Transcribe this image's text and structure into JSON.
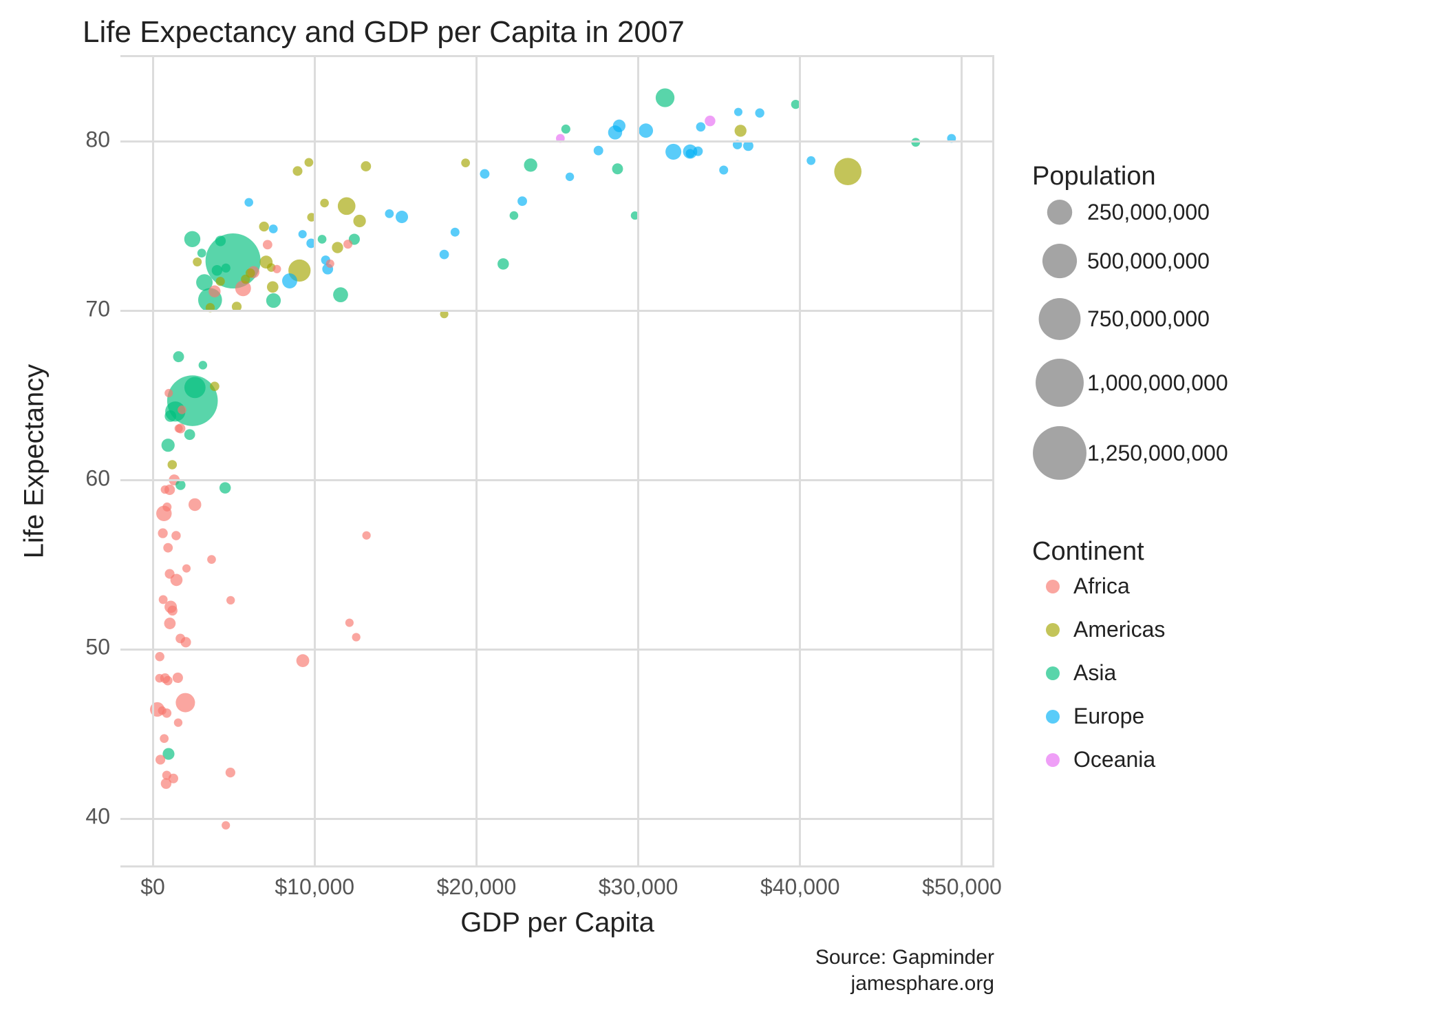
{
  "chart": {
    "type": "scatter-bubble",
    "title": "Life Expectancy and GDP per Capita in 2007",
    "xlabel": "GDP per Capita",
    "ylabel": "Life Expectancy",
    "caption_line1": "Source: Gapminder",
    "caption_line2": "jamesphare.org",
    "background_color": "#ffffff",
    "grid_color": "#dcdcdc",
    "title_fontsize": 44,
    "axis_label_fontsize": 40,
    "tick_fontsize": 32,
    "xlim": [
      -2000,
      52000
    ],
    "ylim": [
      37,
      85
    ],
    "xticks": [
      0,
      10000,
      20000,
      30000,
      40000,
      50000
    ],
    "xtick_labels": [
      "$0",
      "$10,000",
      "$20,000",
      "$30,000",
      "$40,000",
      "$50,000"
    ],
    "yticks": [
      40,
      50,
      60,
      70,
      80
    ],
    "ytick_labels": [
      "40",
      "50",
      "60",
      "70",
      "80"
    ],
    "point_fill_opacity": 0.65,
    "point_stroke": "none",
    "continents": {
      "Africa": {
        "color": "#f8766d"
      },
      "Americas": {
        "color": "#a3a500"
      },
      "Asia": {
        "color": "#00bf7d"
      },
      "Europe": {
        "color": "#00b0f6"
      },
      "Oceania": {
        "color": "#e76bf3"
      }
    },
    "size_scale": {
      "min_pop": 200000,
      "max_pop": 1318683096,
      "min_r": 6,
      "max_r": 40
    },
    "legend_population": {
      "title": "Population",
      "items": [
        {
          "label": "250,000,000",
          "pop": 250000000
        },
        {
          "label": "500,000,000",
          "pop": 500000000
        },
        {
          "label": "750,000,000",
          "pop": 750000000
        },
        {
          "label": "1,000,000,000",
          "pop": 1000000000
        },
        {
          "label": "1,250,000,000",
          "pop": 1250000000
        }
      ]
    },
    "legend_continent": {
      "title": "Continent",
      "items": [
        "Africa",
        "Americas",
        "Asia",
        "Europe",
        "Oceania"
      ]
    },
    "data": [
      {
        "continent": "Asia",
        "gdp": 974.58,
        "life": 43.83,
        "pop": 31889923
      },
      {
        "continent": "Europe",
        "gdp": 5937.03,
        "life": 76.42,
        "pop": 3600523
      },
      {
        "continent": "Africa",
        "gdp": 6223.37,
        "life": 72.3,
        "pop": 33333216
      },
      {
        "continent": "Africa",
        "gdp": 4797.23,
        "life": 42.73,
        "pop": 12420476
      },
      {
        "continent": "Americas",
        "gdp": 12779.38,
        "life": 75.32,
        "pop": 40301927
      },
      {
        "continent": "Oceania",
        "gdp": 34435.37,
        "life": 81.23,
        "pop": 20434176
      },
      {
        "continent": "Europe",
        "gdp": 36126.49,
        "life": 79.83,
        "pop": 8199783
      },
      {
        "continent": "Asia",
        "gdp": 29796.05,
        "life": 75.64,
        "pop": 708573
      },
      {
        "continent": "Asia",
        "gdp": 1391.25,
        "life": 64.06,
        "pop": 150448339
      },
      {
        "continent": "Europe",
        "gdp": 33692.61,
        "life": 79.44,
        "pop": 10392226
      },
      {
        "continent": "Africa",
        "gdp": 1441.28,
        "life": 56.73,
        "pop": 8078314
      },
      {
        "continent": "Americas",
        "gdp": 3822.14,
        "life": 65.55,
        "pop": 9119152
      },
      {
        "continent": "Europe",
        "gdp": 7446.3,
        "life": 74.85,
        "pop": 4552198
      },
      {
        "continent": "Africa",
        "gdp": 12569.85,
        "life": 50.73,
        "pop": 1639131
      },
      {
        "continent": "Americas",
        "gdp": 9065.8,
        "life": 72.39,
        "pop": 190010647
      },
      {
        "continent": "Europe",
        "gdp": 10680.79,
        "life": 73.01,
        "pop": 7322858
      },
      {
        "continent": "Africa",
        "gdp": 1217.03,
        "life": 52.3,
        "pop": 14326203
      },
      {
        "continent": "Africa",
        "gdp": 430.07,
        "life": 49.58,
        "pop": 8390505
      },
      {
        "continent": "Asia",
        "gdp": 1713.78,
        "life": 59.72,
        "pop": 14131858
      },
      {
        "continent": "Africa",
        "gdp": 2042.1,
        "life": 50.43,
        "pop": 17696293
      },
      {
        "continent": "Americas",
        "gdp": 36319.24,
        "life": 80.65,
        "pop": 33390141
      },
      {
        "continent": "Africa",
        "gdp": 706.02,
        "life": 44.74,
        "pop": 4369038
      },
      {
        "continent": "Africa",
        "gdp": 1704.06,
        "life": 50.65,
        "pop": 10238807
      },
      {
        "continent": "Americas",
        "gdp": 13171.64,
        "life": 78.55,
        "pop": 16284741
      },
      {
        "continent": "Asia",
        "gdp": 4959.11,
        "life": 72.96,
        "pop": 1318683096
      },
      {
        "continent": "Americas",
        "gdp": 7006.58,
        "life": 72.89,
        "pop": 44227550
      },
      {
        "continent": "Africa",
        "gdp": 986.15,
        "life": 65.15,
        "pop": 710960
      },
      {
        "continent": "Africa",
        "gdp": 277.55,
        "life": 46.46,
        "pop": 64606759
      },
      {
        "continent": "Africa",
        "gdp": 3632.56,
        "life": 55.32,
        "pop": 3800610
      },
      {
        "continent": "Americas",
        "gdp": 9645.06,
        "life": 78.78,
        "pop": 4133884
      },
      {
        "continent": "Africa",
        "gdp": 1544.75,
        "life": 48.33,
        "pop": 18013409
      },
      {
        "continent": "Europe",
        "gdp": 14619.22,
        "life": 75.75,
        "pop": 4493312
      },
      {
        "continent": "Americas",
        "gdp": 8948.1,
        "life": 78.27,
        "pop": 11416987
      },
      {
        "continent": "Europe",
        "gdp": 22833.31,
        "life": 76.49,
        "pop": 10228744
      },
      {
        "continent": "Europe",
        "gdp": 35278.42,
        "life": 78.33,
        "pop": 5468120
      },
      {
        "continent": "Africa",
        "gdp": 2082.48,
        "life": 54.79,
        "pop": 496374
      },
      {
        "continent": "Americas",
        "gdp": 6025.37,
        "life": 72.24,
        "pop": 9319622
      },
      {
        "continent": "Americas",
        "gdp": 6873.26,
        "life": 74.99,
        "pop": 13755680
      },
      {
        "continent": "Africa",
        "gdp": 5581.18,
        "life": 71.34,
        "pop": 80264543
      },
      {
        "continent": "Americas",
        "gdp": 5728.35,
        "life": 71.88,
        "pop": 6939688
      },
      {
        "continent": "Africa",
        "gdp": 12154.09,
        "life": 51.58,
        "pop": 551201
      },
      {
        "continent": "Africa",
        "gdp": 641.37,
        "life": 52.95,
        "pop": 4906585
      },
      {
        "continent": "Africa",
        "gdp": 690.81,
        "life": 58.04,
        "pop": 76511887
      },
      {
        "continent": "Europe",
        "gdp": 33207.08,
        "life": 79.31,
        "pop": 5238460
      },
      {
        "continent": "Europe",
        "gdp": 30470.02,
        "life": 80.66,
        "pop": 61083916
      },
      {
        "continent": "Africa",
        "gdp": 13206.48,
        "life": 56.74,
        "pop": 1454867
      },
      {
        "continent": "Africa",
        "gdp": 752.75,
        "life": 59.45,
        "pop": 1688359
      },
      {
        "continent": "Europe",
        "gdp": 32170.37,
        "life": 79.41,
        "pop": 82400996
      },
      {
        "continent": "Africa",
        "gdp": 1327.61,
        "life": 60.02,
        "pop": 22873338
      },
      {
        "continent": "Europe",
        "gdp": 27538.41,
        "life": 79.48,
        "pop": 10706290
      },
      {
        "continent": "Americas",
        "gdp": 5186.05,
        "life": 70.26,
        "pop": 12572928
      },
      {
        "continent": "Africa",
        "gdp": 942.65,
        "life": 56.01,
        "pop": 9947814
      },
      {
        "continent": "Africa",
        "gdp": 579.23,
        "life": 46.39,
        "pop": 1472041
      },
      {
        "continent": "Americas",
        "gdp": 1201.64,
        "life": 60.92,
        "pop": 8502814
      },
      {
        "continent": "Americas",
        "gdp": 3548.33,
        "life": 70.2,
        "pop": 7483763
      },
      {
        "continent": "Asia",
        "gdp": 39724.98,
        "life": 82.21,
        "pop": 6980412
      },
      {
        "continent": "Europe",
        "gdp": 18008.94,
        "life": 73.34,
        "pop": 9956108
      },
      {
        "continent": "Europe",
        "gdp": 36180.79,
        "life": 81.76,
        "pop": 301931
      },
      {
        "continent": "Asia",
        "gdp": 2452.21,
        "life": 64.7,
        "pop": 1110396331
      },
      {
        "continent": "Asia",
        "gdp": 3540.65,
        "life": 70.65,
        "pop": 223547000
      },
      {
        "continent": "Asia",
        "gdp": 11605.71,
        "life": 70.96,
        "pop": 69453570
      },
      {
        "continent": "Asia",
        "gdp": 4471.06,
        "life": 59.55,
        "pop": 27499638
      },
      {
        "continent": "Europe",
        "gdp": 40676.0,
        "life": 78.89,
        "pop": 4109086
      },
      {
        "continent": "Asia",
        "gdp": 25523.28,
        "life": 80.75,
        "pop": 6426679
      },
      {
        "continent": "Europe",
        "gdp": 28569.72,
        "life": 80.55,
        "pop": 58147733
      },
      {
        "continent": "Americas",
        "gdp": 7320.88,
        "life": 72.57,
        "pop": 2780132
      },
      {
        "continent": "Asia",
        "gdp": 31656.07,
        "life": 82.6,
        "pop": 127467972
      },
      {
        "continent": "Asia",
        "gdp": 4519.46,
        "life": 72.54,
        "pop": 6053193
      },
      {
        "continent": "Africa",
        "gdp": 1463.25,
        "life": 54.11,
        "pop": 35610177
      },
      {
        "continent": "Asia",
        "gdp": 1593.06,
        "life": 67.3,
        "pop": 23301725
      },
      {
        "continent": "Asia",
        "gdp": 23348.14,
        "life": 78.62,
        "pop": 49044790
      },
      {
        "continent": "Asia",
        "gdp": 10461.06,
        "life": 74.24,
        "pop": 3921278
      },
      {
        "continent": "Africa",
        "gdp": 1569.33,
        "life": 45.68,
        "pop": 2012649
      },
      {
        "continent": "Africa",
        "gdp": 414.51,
        "life": 48.3,
        "pop": 3193942
      },
      {
        "continent": "Africa",
        "gdp": 12057.5,
        "life": 73.95,
        "pop": 6036914
      },
      {
        "continent": "Africa",
        "gdp": 1044.77,
        "life": 59.44,
        "pop": 19167654
      },
      {
        "continent": "Africa",
        "gdp": 759.35,
        "life": 48.3,
        "pop": 13327079
      },
      {
        "continent": "Asia",
        "gdp": 12451.66,
        "life": 74.24,
        "pop": 24821286
      },
      {
        "continent": "Africa",
        "gdp": 1042.58,
        "life": 54.47,
        "pop": 12031795
      },
      {
        "continent": "Africa",
        "gdp": 1803.15,
        "life": 64.16,
        "pop": 3270065
      },
      {
        "continent": "Africa",
        "gdp": 10956.99,
        "life": 72.8,
        "pop": 1250882
      },
      {
        "continent": "Americas",
        "gdp": 11977.57,
        "life": 76.2,
        "pop": 108700891
      },
      {
        "continent": "Asia",
        "gdp": 3095.77,
        "life": 66.8,
        "pop": 2874127
      },
      {
        "continent": "Europe",
        "gdp": 9253.9,
        "life": 74.54,
        "pop": 684736
      },
      {
        "continent": "Africa",
        "gdp": 3820.18,
        "life": 71.16,
        "pop": 33757175
      },
      {
        "continent": "Africa",
        "gdp": 823.69,
        "life": 42.08,
        "pop": 19951656
      },
      {
        "continent": "Asia",
        "gdp": 944.0,
        "life": 62.07,
        "pop": 47761980
      },
      {
        "continent": "Africa",
        "gdp": 4811.06,
        "life": 52.91,
        "pop": 2055080
      },
      {
        "continent": "Asia",
        "gdp": 1091.36,
        "life": 63.79,
        "pop": 28901790
      },
      {
        "continent": "Europe",
        "gdp": 36797.93,
        "life": 79.76,
        "pop": 16570613
      },
      {
        "continent": "Oceania",
        "gdp": 25185.01,
        "life": 80.2,
        "pop": 4115771
      },
      {
        "continent": "Americas",
        "gdp": 2749.32,
        "life": 72.9,
        "pop": 5675356
      },
      {
        "continent": "Africa",
        "gdp": 619.68,
        "life": 56.87,
        "pop": 12894865
      },
      {
        "continent": "Africa",
        "gdp": 2013.98,
        "life": 46.86,
        "pop": 135031164
      },
      {
        "continent": "Europe",
        "gdp": 49357.19,
        "life": 80.2,
        "pop": 4627926
      },
      {
        "continent": "Asia",
        "gdp": 22316.19,
        "life": 75.64,
        "pop": 3204897
      },
      {
        "continent": "Asia",
        "gdp": 2605.95,
        "life": 65.48,
        "pop": 169270617
      },
      {
        "continent": "Americas",
        "gdp": 9809.19,
        "life": 75.54,
        "pop": 3242173
      },
      {
        "continent": "Americas",
        "gdp": 4172.84,
        "life": 71.75,
        "pop": 6667147
      },
      {
        "continent": "Americas",
        "gdp": 7408.91,
        "life": 71.42,
        "pop": 28674757
      },
      {
        "continent": "Asia",
        "gdp": 3190.48,
        "life": 71.69,
        "pop": 91077287
      },
      {
        "continent": "Europe",
        "gdp": 15389.92,
        "life": 75.56,
        "pop": 38518241
      },
      {
        "continent": "Europe",
        "gdp": 20509.65,
        "life": 78.1,
        "pop": 10642836
      },
      {
        "continent": "Americas",
        "gdp": 19328.71,
        "life": 78.75,
        "pop": 3942491
      },
      {
        "continent": "Africa",
        "gdp": 7670.12,
        "life": 72.48,
        "pop": 798094
      },
      {
        "continent": "Europe",
        "gdp": 10808.48,
        "life": 72.48,
        "pop": 22276056
      },
      {
        "continent": "Africa",
        "gdp": 863.09,
        "life": 46.24,
        "pop": 8860588
      },
      {
        "continent": "Africa",
        "gdp": 1598.44,
        "life": 63.06,
        "pop": 199579
      },
      {
        "continent": "Asia",
        "gdp": 21654.83,
        "life": 72.78,
        "pop": 27601038
      },
      {
        "continent": "Africa",
        "gdp": 1712.47,
        "life": 63.06,
        "pop": 12267493
      },
      {
        "continent": "Europe",
        "gdp": 9786.53,
        "life": 74.0,
        "pop": 10150265
      },
      {
        "continent": "Africa",
        "gdp": 862.54,
        "life": 42.57,
        "pop": 6144562
      },
      {
        "continent": "Asia",
        "gdp": 47143.18,
        "life": 79.97,
        "pop": 4553009
      },
      {
        "continent": "Europe",
        "gdp": 18678.31,
        "life": 74.66,
        "pop": 5447502
      },
      {
        "continent": "Europe",
        "gdp": 25768.26,
        "life": 77.93,
        "pop": 2009245
      },
      {
        "continent": "Africa",
        "gdp": 926.14,
        "life": 48.16,
        "pop": 9118773
      },
      {
        "continent": "Africa",
        "gdp": 9269.66,
        "life": 49.34,
        "pop": 43997828
      },
      {
        "continent": "Europe",
        "gdp": 28821.06,
        "life": 80.94,
        "pop": 40448191
      },
      {
        "continent": "Asia",
        "gdp": 3970.1,
        "life": 72.4,
        "pop": 20378239
      },
      {
        "continent": "Africa",
        "gdp": 2602.39,
        "life": 58.56,
        "pop": 42292929
      },
      {
        "continent": "Africa",
        "gdp": 4513.48,
        "life": 39.61,
        "pop": 1133066
      },
      {
        "continent": "Europe",
        "gdp": 33859.75,
        "life": 80.88,
        "pop": 9031088
      },
      {
        "continent": "Europe",
        "gdp": 37506.42,
        "life": 81.7,
        "pop": 7554661
      },
      {
        "continent": "Asia",
        "gdp": 4184.55,
        "life": 74.14,
        "pop": 19314747
      },
      {
        "continent": "Asia",
        "gdp": 28718.28,
        "life": 78.4,
        "pop": 23174294
      },
      {
        "continent": "Africa",
        "gdp": 1107.48,
        "life": 52.52,
        "pop": 38139640
      },
      {
        "continent": "Asia",
        "gdp": 7458.4,
        "life": 70.62,
        "pop": 65068149
      },
      {
        "continent": "Africa",
        "gdp": 882.97,
        "life": 58.42,
        "pop": 5701579
      },
      {
        "continent": "Americas",
        "gdp": 18008.51,
        "life": 69.82,
        "pop": 1056608
      },
      {
        "continent": "Africa",
        "gdp": 7092.92,
        "life": 73.92,
        "pop": 10276158
      },
      {
        "continent": "Europe",
        "gdp": 8458.28,
        "life": 71.78,
        "pop": 71158647
      },
      {
        "continent": "Africa",
        "gdp": 1056.38,
        "life": 51.54,
        "pop": 29170398
      },
      {
        "continent": "Europe",
        "gdp": 33203.26,
        "life": 79.42,
        "pop": 60776238
      },
      {
        "continent": "Americas",
        "gdp": 42951.65,
        "life": 78.24,
        "pop": 301139947
      },
      {
        "continent": "Americas",
        "gdp": 10611.46,
        "life": 76.38,
        "pop": 3447496
      },
      {
        "continent": "Americas",
        "gdp": 11415.81,
        "life": 73.75,
        "pop": 26084662
      },
      {
        "continent": "Asia",
        "gdp": 2441.58,
        "life": 74.25,
        "pop": 85262356
      },
      {
        "continent": "Asia",
        "gdp": 3025.35,
        "life": 73.42,
        "pop": 4018332
      },
      {
        "continent": "Asia",
        "gdp": 2280.77,
        "life": 62.7,
        "pop": 22211743
      },
      {
        "continent": "Africa",
        "gdp": 1271.21,
        "life": 42.38,
        "pop": 11746035
      },
      {
        "continent": "Africa",
        "gdp": 469.71,
        "life": 43.49,
        "pop": 12311143
      }
    ]
  }
}
